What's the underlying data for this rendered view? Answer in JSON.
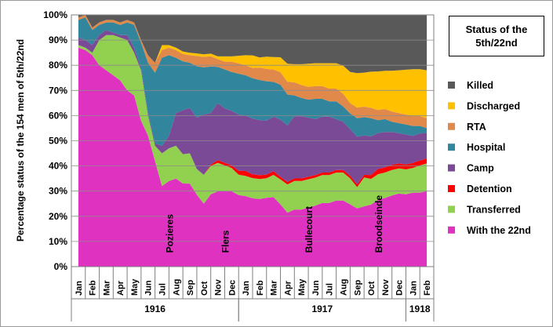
{
  "chart_data": {
    "type": "area",
    "stacked": true,
    "title_lines": [
      "Status of the",
      "5th/22nd"
    ],
    "ylabel": "Percentage status of the 154  men of 5th/22nd",
    "ylim": [
      0,
      100
    ],
    "y_ticks": [
      "0%",
      "10%",
      "20%",
      "30%",
      "40%",
      "50%",
      "60%",
      "70%",
      "80%",
      "90%",
      "100%"
    ],
    "grid": true,
    "legend_position": "right",
    "months": [
      "Jan",
      "Feb",
      "Mar",
      "Apr",
      "May",
      "Jun",
      "Jul",
      "Aug",
      "Sep",
      "Oct",
      "Nov",
      "Dec",
      "Jan",
      "Feb",
      "Mar",
      "Apr",
      "May",
      "Jun",
      "Jul",
      "Aug",
      "Sep",
      "Oct",
      "Nov",
      "Dec",
      "Jan",
      "Feb"
    ],
    "years": [
      {
        "label": "1916",
        "start": 0,
        "end": 12
      },
      {
        "label": "1917",
        "start": 12,
        "end": 24
      },
      {
        "label": "1918",
        "start": 24,
        "end": 26
      }
    ],
    "x": [
      0,
      0.5,
      1,
      1.5,
      2,
      2.5,
      3,
      3.5,
      4,
      4.5,
      5,
      5.5,
      6,
      6.5,
      7,
      7.5,
      8,
      8.5,
      9,
      9.5,
      10,
      10.5,
      11,
      11.5,
      12,
      12.5,
      13,
      13.5,
      14,
      14.5,
      15,
      15.5,
      16,
      16.5,
      17,
      17.5,
      18,
      18.5,
      19,
      19.5,
      20,
      20.5,
      21,
      21.5,
      22,
      22.5,
      23,
      23.5,
      24,
      24.5,
      25
    ],
    "series": [
      {
        "name": "With the 22nd",
        "color": "#E032C0",
        "values": [
          87,
          86,
          84,
          80,
          78,
          76,
          74,
          70,
          68,
          58,
          52,
          42,
          32,
          34,
          35,
          34,
          33,
          28,
          24,
          28,
          29,
          29,
          29,
          28,
          28,
          27,
          27,
          28,
          28,
          25,
          21,
          22,
          22,
          23,
          24,
          25,
          25,
          26,
          26,
          24,
          22,
          23,
          24,
          26,
          27,
          28,
          29,
          29,
          30,
          30,
          30
        ]
      },
      {
        "name": "Transferred",
        "color": "#92D050",
        "values": [
          1,
          1,
          1,
          10,
          14,
          16,
          17,
          20,
          17,
          20,
          8,
          6,
          13,
          13,
          13,
          12,
          12,
          10,
          11,
          11,
          11,
          10,
          9,
          8,
          8,
          8,
          8,
          8,
          9,
          10,
          11,
          11,
          11,
          11,
          11,
          11,
          11,
          11,
          11,
          10,
          8,
          11,
          10,
          10,
          10,
          10,
          10,
          10,
          10,
          11,
          11
        ]
      },
      {
        "name": "Detention",
        "color": "#FF0000",
        "values": [
          0,
          0,
          0,
          0,
          0,
          0,
          0,
          0,
          0,
          0,
          0,
          0,
          0,
          0,
          0,
          0,
          0,
          0,
          0,
          0.5,
          1,
          1,
          1,
          1.5,
          2,
          1.5,
          1.5,
          1.5,
          1.5,
          1,
          1,
          1,
          1,
          1,
          1,
          1,
          1,
          1,
          1,
          1,
          1,
          1,
          1.5,
          2,
          2,
          2,
          2,
          2,
          2,
          2,
          2
        ]
      },
      {
        "name": "Camp",
        "color": "#7B4A96",
        "values": [
          3,
          3,
          3,
          2,
          2,
          1,
          1,
          2,
          2,
          1,
          1,
          1,
          3,
          5,
          13,
          18,
          18,
          20,
          23,
          20,
          22,
          21,
          21,
          22,
          22,
          22,
          22,
          22,
          22,
          23,
          22,
          24,
          24,
          23,
          22,
          22,
          22,
          20,
          19,
          18,
          18,
          15,
          15,
          14,
          14,
          13,
          12,
          12,
          11,
          11,
          10
        ]
      },
      {
        "name": "Hospital",
        "color": "#31859C",
        "values": [
          7,
          9,
          6,
          4,
          3,
          4,
          4,
          5,
          9,
          10,
          20,
          28,
          35,
          32,
          22,
          20,
          18,
          20,
          18,
          18,
          14,
          15,
          15,
          16,
          16,
          16,
          16,
          16,
          14,
          14,
          12,
          8,
          7,
          7,
          8,
          7,
          6,
          7,
          6,
          6,
          7,
          7,
          7,
          5,
          5,
          4,
          4,
          4,
          4,
          3,
          2
        ]
      },
      {
        "name": "RTA",
        "color": "#E0894A",
        "values": [
          1,
          1,
          1,
          1,
          1,
          1,
          1,
          1,
          1,
          1,
          3,
          4,
          3,
          3,
          3,
          3,
          3,
          4,
          4,
          4,
          3,
          3,
          4,
          4,
          4,
          4,
          5,
          5,
          5,
          5,
          5,
          5,
          5,
          5,
          5,
          5,
          5,
          5,
          5,
          4,
          4,
          4,
          4,
          4,
          4,
          4,
          4,
          4,
          4,
          4,
          4
        ]
      },
      {
        "name": "Discharged",
        "color": "#FFC000",
        "values": [
          0,
          0,
          0,
          0,
          0,
          0,
          0,
          0,
          0,
          0,
          0,
          0,
          2,
          1,
          1,
          1,
          1,
          1,
          1,
          1,
          1,
          2,
          2,
          3,
          4,
          5,
          4,
          5,
          5,
          6,
          7,
          7,
          8,
          9,
          9,
          9,
          10,
          10,
          11,
          12,
          13,
          13,
          14,
          15,
          15,
          16,
          17,
          18,
          19,
          19,
          19
        ]
      },
      {
        "name": "Killed",
        "color": "#595959",
        "values": [
          1,
          0,
          5,
          3,
          2,
          2,
          3,
          2,
          3,
          10,
          16,
          19,
          12,
          12,
          13,
          15,
          15,
          15,
          15,
          15,
          16,
          16,
          16,
          16,
          16,
          16,
          17,
          17,
          17,
          17,
          19,
          19,
          19,
          19,
          19,
          19,
          19,
          19,
          20,
          22,
          22,
          22,
          22,
          22,
          22,
          22,
          22,
          22,
          22,
          22,
          22
        ]
      }
    ],
    "legend": [
      "Killed",
      "Discharged",
      "RTA",
      "Hospital",
      "Camp",
      "Detention",
      "Transferred",
      "With the 22nd"
    ],
    "annotations": [
      {
        "text": "Pozieres",
        "x": 6.5
      },
      {
        "text": "Flers",
        "x": 10.5
      },
      {
        "text": "Bullecourt",
        "x": 16.5
      },
      {
        "text": "Broodseinde",
        "x": 21.5
      }
    ]
  }
}
